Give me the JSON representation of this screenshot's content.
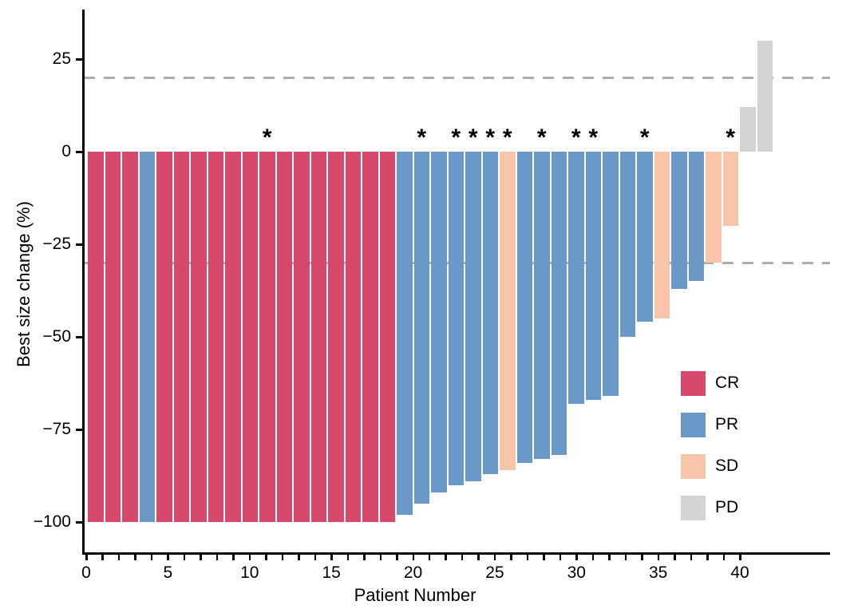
{
  "chart_data": {
    "type": "bar",
    "subtype": "waterfall",
    "title": "",
    "xlabel": "Patient Number",
    "ylabel": "Best size change (%)",
    "xlim": [
      0,
      41.5
    ],
    "ylim": [
      -108,
      38
    ],
    "grid": false,
    "x_major_tick_values": [
      0,
      5,
      10,
      15,
      20,
      25,
      30,
      35,
      40
    ],
    "x_minor_tick_every": 1,
    "x_minor_tick_max": 40,
    "y_ticks": [
      {
        "value": 25,
        "label": "25"
      },
      {
        "value": 0,
        "label": "0"
      },
      {
        "value": -25,
        "label": "−25"
      },
      {
        "value": -50,
        "label": "−50"
      },
      {
        "value": -75,
        "label": "−75"
      },
      {
        "value": -100,
        "label": "−100"
      }
    ],
    "reference_lines": [
      {
        "value": 20,
        "style": "dashed",
        "color": "#ADADAD"
      },
      {
        "value": -30,
        "style": "dashed",
        "color": "#ADADAD"
      }
    ],
    "legend": {
      "position": "inside-right",
      "entries": [
        {
          "label": "CR",
          "color": "#D6486C"
        },
        {
          "label": "PR",
          "color": "#6A99C8"
        },
        {
          "label": "SD",
          "color": "#F7C6AA"
        },
        {
          "label": "PD",
          "color": "#D3D3D3"
        }
      ]
    },
    "annotation_symbol": "*",
    "series_name": "Best size change (%)",
    "patients": [
      {
        "n": 1,
        "value": -100,
        "response": "CR",
        "star": false
      },
      {
        "n": 2,
        "value": -100,
        "response": "CR",
        "star": false
      },
      {
        "n": 3,
        "value": -100,
        "response": "CR",
        "star": false
      },
      {
        "n": 4,
        "value": -100,
        "response": "PR",
        "star": false
      },
      {
        "n": 5,
        "value": -100,
        "response": "CR",
        "star": false
      },
      {
        "n": 6,
        "value": -100,
        "response": "CR",
        "star": false
      },
      {
        "n": 7,
        "value": -100,
        "response": "CR",
        "star": false
      },
      {
        "n": 8,
        "value": -100,
        "response": "CR",
        "star": false
      },
      {
        "n": 9,
        "value": -100,
        "response": "CR",
        "star": false
      },
      {
        "n": 10,
        "value": -100,
        "response": "CR",
        "star": false
      },
      {
        "n": 11,
        "value": -100,
        "response": "CR",
        "star": true
      },
      {
        "n": 12,
        "value": -100,
        "response": "CR",
        "star": false
      },
      {
        "n": 13,
        "value": -100,
        "response": "CR",
        "star": false
      },
      {
        "n": 14,
        "value": -100,
        "response": "CR",
        "star": false
      },
      {
        "n": 15,
        "value": -100,
        "response": "CR",
        "star": false
      },
      {
        "n": 16,
        "value": -100,
        "response": "CR",
        "star": false
      },
      {
        "n": 17,
        "value": -100,
        "response": "CR",
        "star": false
      },
      {
        "n": 18,
        "value": -100,
        "response": "CR",
        "star": false
      },
      {
        "n": 19,
        "value": -98,
        "response": "PR",
        "star": false
      },
      {
        "n": 20,
        "value": -95,
        "response": "PR",
        "star": true
      },
      {
        "n": 21,
        "value": -92,
        "response": "PR",
        "star": false
      },
      {
        "n": 22,
        "value": -90,
        "response": "PR",
        "star": true
      },
      {
        "n": 23,
        "value": -89,
        "response": "PR",
        "star": true
      },
      {
        "n": 24,
        "value": -87,
        "response": "PR",
        "star": true
      },
      {
        "n": 25,
        "value": -86,
        "response": "SD",
        "star": true
      },
      {
        "n": 26,
        "value": -84,
        "response": "PR",
        "star": false
      },
      {
        "n": 27,
        "value": -83,
        "response": "PR",
        "star": true
      },
      {
        "n": 28,
        "value": -82,
        "response": "PR",
        "star": false
      },
      {
        "n": 29,
        "value": -68,
        "response": "PR",
        "star": true
      },
      {
        "n": 30,
        "value": -67,
        "response": "PR",
        "star": true
      },
      {
        "n": 31,
        "value": -66,
        "response": "PR",
        "star": false
      },
      {
        "n": 32,
        "value": -50,
        "response": "PR",
        "star": false
      },
      {
        "n": 33,
        "value": -46,
        "response": "PR",
        "star": true
      },
      {
        "n": 34,
        "value": -45,
        "response": "SD",
        "star": false
      },
      {
        "n": 35,
        "value": -37,
        "response": "PR",
        "star": false
      },
      {
        "n": 36,
        "value": -35,
        "response": "PR",
        "star": false
      },
      {
        "n": 37,
        "value": -30,
        "response": "SD",
        "star": false
      },
      {
        "n": 38,
        "value": -20,
        "response": "SD",
        "star": true
      },
      {
        "n": 39,
        "value": 12,
        "response": "PD",
        "star": false
      },
      {
        "n": 40,
        "value": 30,
        "response": "PD",
        "star": false
      }
    ],
    "response_colors": {
      "CR": "#D6486C",
      "PR": "#6A99C8",
      "SD": "#F7C6AA",
      "PD": "#D3D3D3"
    }
  }
}
